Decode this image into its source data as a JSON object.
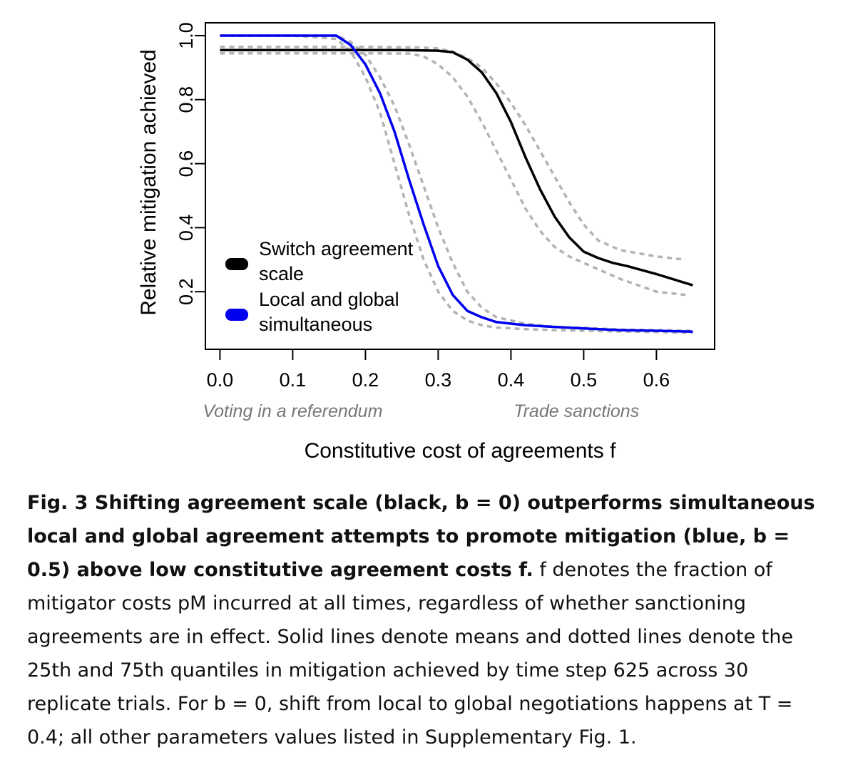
{
  "chart_data": {
    "type": "line",
    "xlabel": "Constitutive cost of agreements f",
    "ylabel": "Relative mitigation achieved",
    "xlim": [
      -0.02,
      0.68
    ],
    "ylim": [
      0.02,
      1.04
    ],
    "x_ticks": [
      "0.0",
      "0.1",
      "0.2",
      "0.3",
      "0.4",
      "0.5",
      "0.6"
    ],
    "y_ticks": [
      "0.2",
      "0.4",
      "0.6",
      "0.8",
      "1.0"
    ],
    "annotations": [
      {
        "text": "Voting in a referendum",
        "x": 0.1
      },
      {
        "text": "Trade sanctions",
        "x": 0.49
      }
    ],
    "legend": {
      "position": "bottom-left",
      "entries": [
        {
          "label_line1": "Switch agreement",
          "label_line2": "scale",
          "color": "#000000"
        },
        {
          "label_line1": "Local and global",
          "label_line2": "simultaneous",
          "color": "#0000ee"
        }
      ]
    },
    "series": [
      {
        "color": "#000000",
        "style": "solid",
        "x": [
          0.0,
          0.1,
          0.2,
          0.25,
          0.3,
          0.32,
          0.34,
          0.36,
          0.38,
          0.4,
          0.42,
          0.44,
          0.46,
          0.48,
          0.5,
          0.52,
          0.54,
          0.56,
          0.6,
          0.65
        ],
        "y": [
          0.955,
          0.955,
          0.955,
          0.955,
          0.953,
          0.948,
          0.925,
          0.885,
          0.82,
          0.73,
          0.62,
          0.52,
          0.435,
          0.37,
          0.325,
          0.305,
          0.29,
          0.28,
          0.255,
          0.22
        ]
      },
      {
        "color": "#b3b3b3",
        "style": "dashed",
        "x": [
          0.0,
          0.1,
          0.2,
          0.27,
          0.3,
          0.32,
          0.34,
          0.36,
          0.38,
          0.4,
          0.42,
          0.44,
          0.46,
          0.48,
          0.5,
          0.52,
          0.55,
          0.6,
          0.64
        ],
        "y": [
          0.965,
          0.965,
          0.965,
          0.963,
          0.96,
          0.95,
          0.93,
          0.9,
          0.85,
          0.79,
          0.72,
          0.64,
          0.56,
          0.48,
          0.41,
          0.36,
          0.33,
          0.31,
          0.3
        ]
      },
      {
        "color": "#b3b3b3",
        "style": "dashed",
        "x": [
          0.0,
          0.1,
          0.2,
          0.26,
          0.28,
          0.3,
          0.32,
          0.34,
          0.36,
          0.38,
          0.4,
          0.42,
          0.44,
          0.46,
          0.48,
          0.5,
          0.52,
          0.55,
          0.6,
          0.64
        ],
        "y": [
          0.945,
          0.945,
          0.945,
          0.944,
          0.935,
          0.91,
          0.87,
          0.81,
          0.73,
          0.64,
          0.55,
          0.46,
          0.39,
          0.34,
          0.31,
          0.29,
          0.27,
          0.24,
          0.2,
          0.19
        ]
      },
      {
        "color": "#0000ee",
        "style": "solid",
        "x": [
          0.0,
          0.1,
          0.16,
          0.18,
          0.2,
          0.22,
          0.24,
          0.26,
          0.28,
          0.3,
          0.32,
          0.34,
          0.36,
          0.38,
          0.42,
          0.46,
          0.5,
          0.55,
          0.6,
          0.65
        ],
        "y": [
          1.0,
          1.0,
          1.0,
          0.97,
          0.91,
          0.82,
          0.7,
          0.55,
          0.41,
          0.28,
          0.19,
          0.14,
          0.12,
          0.105,
          0.095,
          0.09,
          0.085,
          0.08,
          0.078,
          0.075
        ]
      },
      {
        "color": "#b3b3b3",
        "style": "dashed",
        "x": [
          0.0,
          0.1,
          0.16,
          0.18,
          0.2,
          0.22,
          0.24,
          0.26,
          0.28,
          0.3,
          0.32,
          0.34,
          0.36,
          0.38,
          0.42,
          0.46,
          0.5,
          0.55,
          0.6,
          0.65
        ],
        "y": [
          1.0,
          1.0,
          1.0,
          0.98,
          0.94,
          0.87,
          0.78,
          0.66,
          0.53,
          0.4,
          0.29,
          0.2,
          0.15,
          0.12,
          0.1,
          0.09,
          0.087,
          0.082,
          0.08,
          0.078
        ]
      },
      {
        "color": "#b3b3b3",
        "style": "dashed",
        "x": [
          0.0,
          0.1,
          0.16,
          0.18,
          0.2,
          0.22,
          0.24,
          0.26,
          0.28,
          0.3,
          0.32,
          0.34,
          0.36,
          0.38,
          0.42,
          0.46,
          0.5,
          0.55,
          0.6,
          0.65
        ],
        "y": [
          1.0,
          1.0,
          0.99,
          0.95,
          0.87,
          0.76,
          0.6,
          0.44,
          0.3,
          0.2,
          0.14,
          0.11,
          0.095,
          0.088,
          0.083,
          0.08,
          0.078,
          0.076,
          0.074,
          0.072
        ]
      }
    ]
  },
  "caption": {
    "bold": "Fig. 3 Shifting agreement scale (black, b = 0) outperforms simultaneous local and global agreement attempts to promote mitigation (blue, b = 0.5) above low constitutive agreement costs f.",
    "text": "f denotes the fraction of mitigator costs pM incurred at all times, regardless of whether sanctioning agreements are in effect. Solid lines denote means and dotted lines denote the 25th and 75th quantiles in mitigation achieved by time step 625 across 30 replicate trials. For b = 0, shift from local to global negotiations happens at T = 0.4; all other parameters values listed in Supplementary Fig. 1."
  }
}
